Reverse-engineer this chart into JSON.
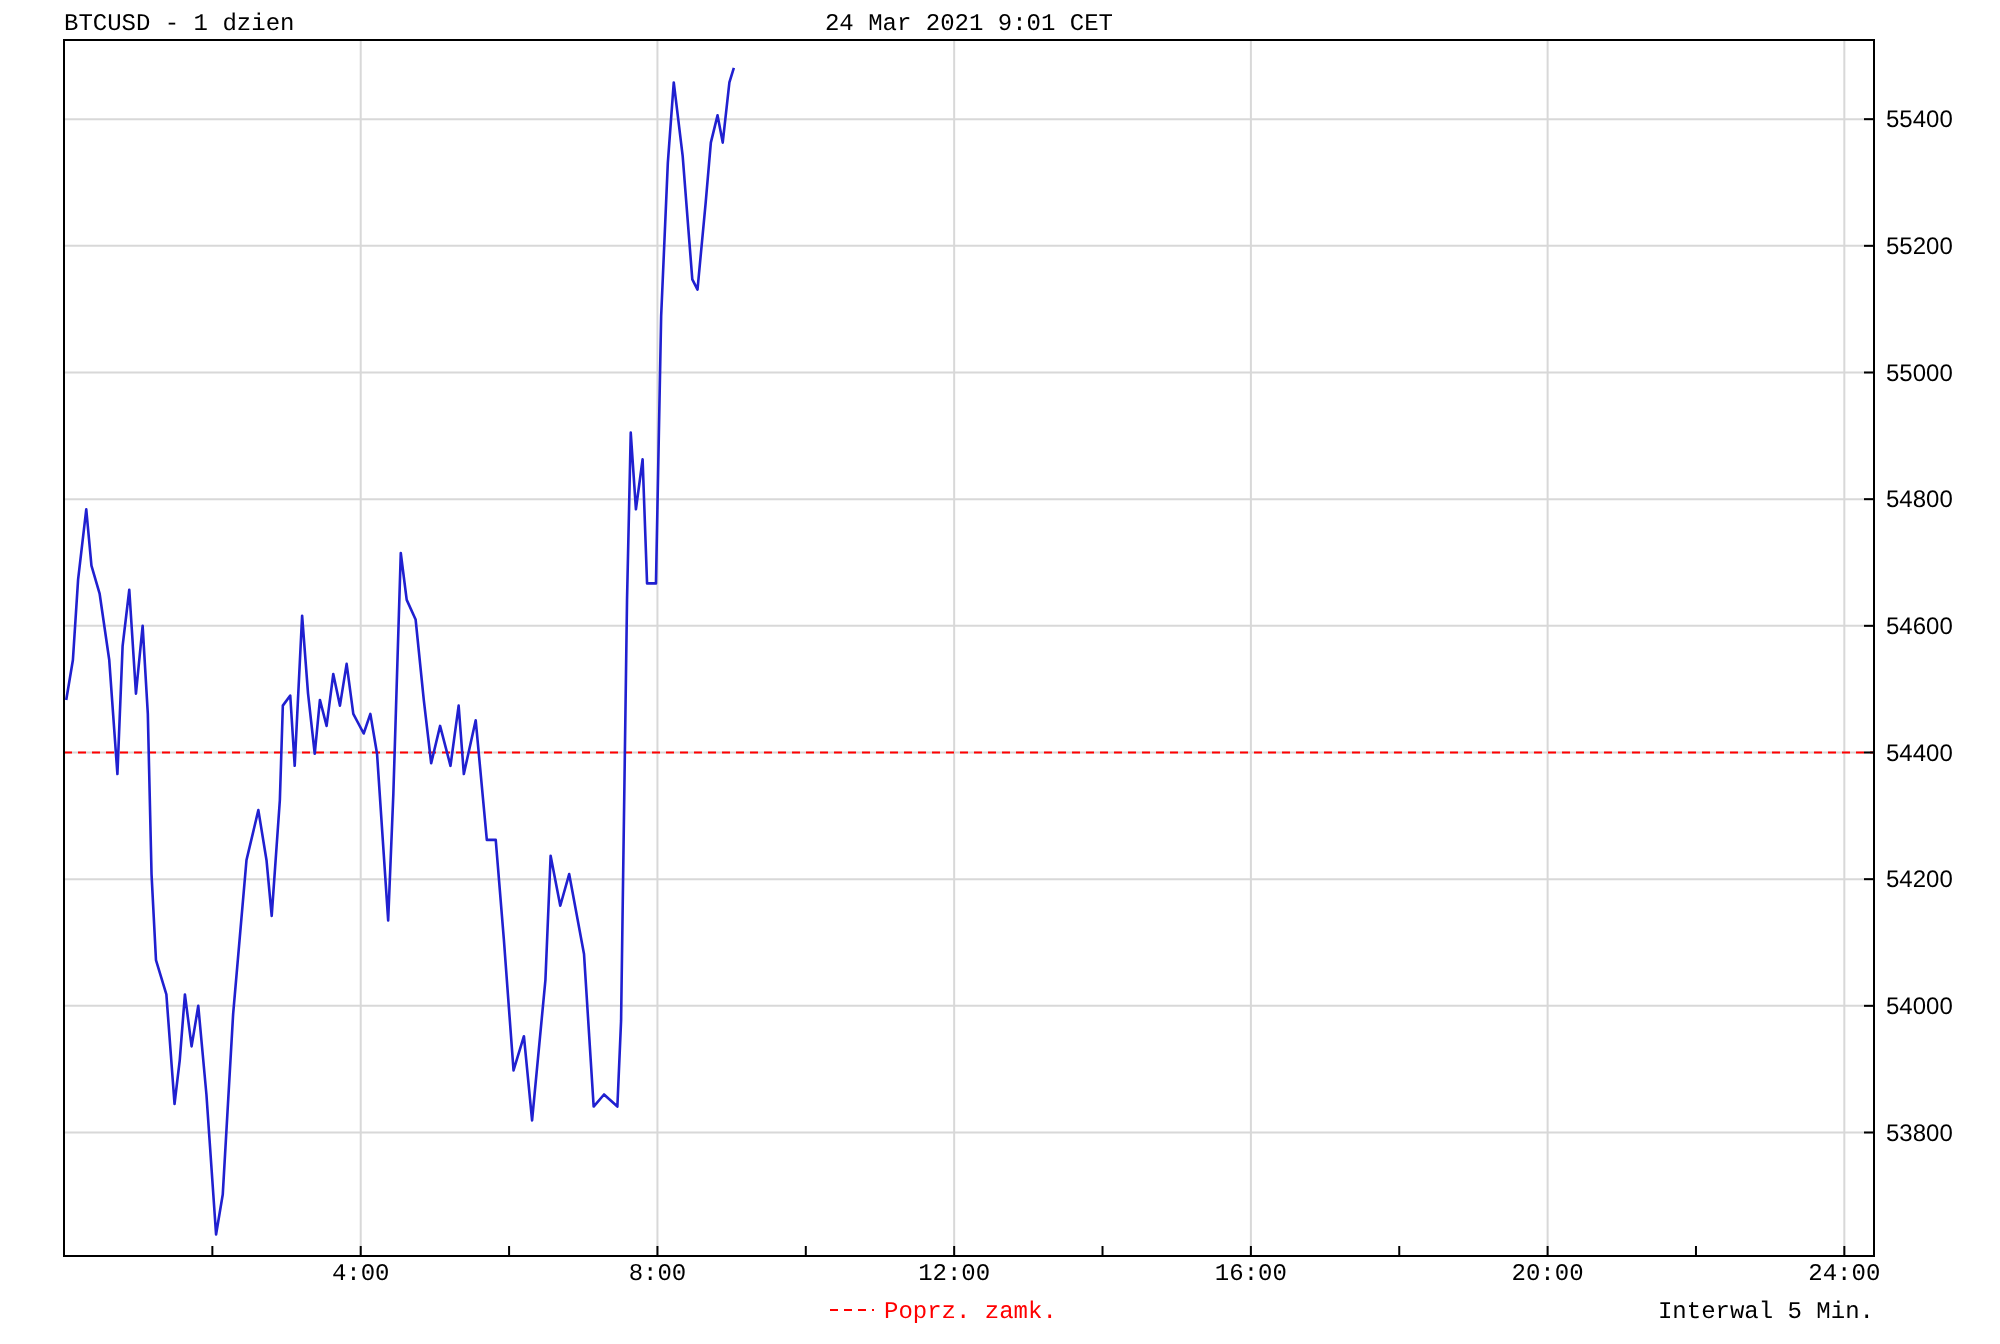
{
  "chart_data": {
    "type": "line",
    "title": "BTCUSD - 1 dzien",
    "subtitle": "24 Mar 2021 9:01 CET",
    "annotations": [
      "Interwal 5 Min."
    ],
    "xlim": [
      0,
      24.4
    ],
    "ylim": [
      53605,
      55525
    ],
    "xticks": [
      {
        "value": 2,
        "label": null
      },
      {
        "value": 4,
        "label": "4:00"
      },
      {
        "value": 6,
        "label": null
      },
      {
        "value": 8,
        "label": "8:00"
      },
      {
        "value": 10,
        "label": null
      },
      {
        "value": 12,
        "label": "12:00"
      },
      {
        "value": 14,
        "label": null
      },
      {
        "value": 16,
        "label": "16:00"
      },
      {
        "value": 18,
        "label": null
      },
      {
        "value": 20,
        "label": "20:00"
      },
      {
        "value": 22,
        "label": null
      },
      {
        "value": 24,
        "label": "24:00"
      }
    ],
    "yticks": [
      53800,
      54000,
      54200,
      54400,
      54600,
      54800,
      55000,
      55200,
      55400
    ],
    "grid": true,
    "ref_lines": [
      {
        "axis": "y",
        "value": 54400,
        "label": "Poprz. zamk.",
        "color": "#ff0000",
        "line_style": "dashed"
      }
    ],
    "series": [
      {
        "color": "#2020d0",
        "x": [
          0.03,
          0.12,
          0.19,
          0.3,
          0.37,
          0.48,
          0.61,
          0.72,
          0.79,
          0.88,
          0.97,
          1.06,
          1.13,
          1.18,
          1.24,
          1.38,
          1.49,
          1.56,
          1.63,
          1.72,
          1.81,
          1.92,
          2.05,
          2.14,
          2.28,
          2.46,
          2.62,
          2.73,
          2.8,
          2.91,
          2.95,
          3.05,
          3.11,
          3.21,
          3.29,
          3.38,
          3.45,
          3.54,
          3.63,
          3.72,
          3.81,
          3.9,
          4.04,
          4.13,
          4.22,
          4.37,
          4.44,
          4.54,
          4.62,
          4.74,
          4.85,
          4.95,
          5.07,
          5.21,
          5.32,
          5.39,
          5.55,
          5.7,
          5.82,
          5.93,
          6.06,
          6.2,
          6.31,
          6.49,
          6.56,
          6.69,
          6.81,
          7.01,
          7.14,
          7.28,
          7.46,
          7.51,
          7.59,
          7.64,
          7.71,
          7.8,
          7.86,
          7.98,
          8.05,
          8.14,
          8.22,
          8.34,
          8.47,
          8.54,
          8.65,
          8.72,
          8.81,
          8.88,
          8.97,
          9.03
        ],
        "values": [
          54483,
          54546,
          54673,
          54784,
          54695,
          54651,
          54546,
          54366,
          54568,
          54657,
          54493,
          54600,
          54461,
          54208,
          54072,
          54018,
          53845,
          53914,
          54018,
          53936,
          54000,
          53860,
          53639,
          53702,
          53987,
          54230,
          54309,
          54230,
          54142,
          54325,
          54474,
          54490,
          54379,
          54616,
          54493,
          54398,
          54483,
          54442,
          54524,
          54474,
          54540,
          54461,
          54430,
          54461,
          54398,
          54135,
          54335,
          54715,
          54641,
          54610,
          54483,
          54383,
          54442,
          54379,
          54474,
          54366,
          54451,
          54262,
          54262,
          54104,
          53898,
          53952,
          53819,
          54041,
          54237,
          54158,
          54208,
          54082,
          53841,
          53860,
          53841,
          53977,
          54641,
          54905,
          54784,
          54863,
          54667,
          54667,
          55089,
          55331,
          55458,
          55342,
          55147,
          55131,
          55268,
          55363,
          55406,
          55363,
          55458,
          55481
        ]
      }
    ]
  }
}
